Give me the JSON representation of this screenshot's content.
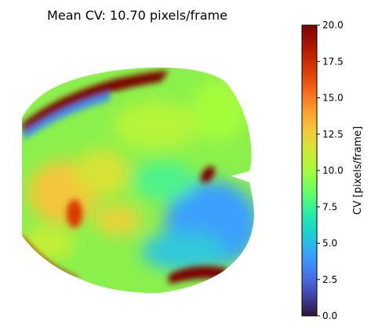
{
  "chart_data": {
    "type": "heatmap",
    "title": "Mean CV: 10.70 pixels/frame",
    "colorbar": {
      "label": "CV [pixels/frame]",
      "colormap": "turbo",
      "vmin": 0.0,
      "vmax": 20.0,
      "ticks": [
        {
          "value": 0.0,
          "label": "0.0"
        },
        {
          "value": 2.5,
          "label": "2.5"
        },
        {
          "value": 5.0,
          "label": "5.0"
        },
        {
          "value": 7.5,
          "label": "7.5"
        },
        {
          "value": 10.0,
          "label": "10.0"
        },
        {
          "value": 12.5,
          "label": "12.5"
        },
        {
          "value": 15.0,
          "label": "15.0"
        },
        {
          "value": 17.5,
          "label": "17.5"
        },
        {
          "value": 20.0,
          "label": "20.0"
        }
      ]
    },
    "axes_visible": false,
    "background_value": "masked (white)",
    "regions": [
      {
        "description": "high-velocity ridge along upper-left edge",
        "value": 20.0
      },
      {
        "description": "elongated band along upper-left boundary (blue rim)",
        "value": 4.0
      },
      {
        "description": "upper centre plateau",
        "value": 10.0
      },
      {
        "description": "small hot spot right of centre",
        "value": 20.0
      },
      {
        "description": "left lower patch",
        "value": 14.0
      },
      {
        "description": "lower-right slow zone",
        "value": 5.0
      },
      {
        "description": "bottom-right hot streak",
        "value": 20.0
      },
      {
        "description": "bottom-left rim",
        "value": 19.0
      }
    ]
  }
}
